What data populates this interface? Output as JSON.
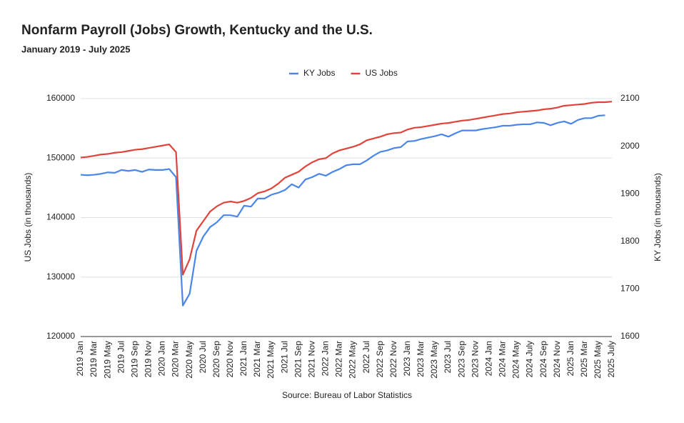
{
  "chart_data": {
    "type": "line",
    "title": "Nonfarm Payroll (Jobs) Growth, Kentucky and the U.S.",
    "subtitle": "January 2019 - July 2025",
    "source": "Source: Bureau of Labor Statistics",
    "ylabel": "US Jobs (in thousands)",
    "y2label": "KY Jobs (in thousands)",
    "categories": [
      "2019 Jan",
      null,
      "2019 Mar",
      null,
      "2019 May",
      null,
      "2019 Jul",
      null,
      "2019 Sep",
      null,
      "2019 Nov",
      null,
      "2020 Jan",
      null,
      "2020 Mar",
      null,
      "2020 May",
      null,
      "2020 Jul",
      null,
      "2020 Sep",
      null,
      "2020 Nov",
      null,
      "2021 Jan",
      null,
      "2021 Mar",
      null,
      "2021 May",
      null,
      "2021 Jul",
      null,
      "2021 Sep",
      null,
      "2021 Nov",
      null,
      "2022 Jan",
      null,
      "2022 Mar",
      null,
      "2022 May",
      null,
      "2022 Jul",
      null,
      "2022 Sep",
      null,
      "2022 Nov",
      null,
      "2023 Jan",
      null,
      "2023 Mar",
      null,
      "2023 May",
      null,
      "2023 Jul",
      null,
      "2023 Sep",
      null,
      "2023 Nov",
      null,
      "2024 Jan",
      null,
      "2024 Mar",
      null,
      "2024 May",
      null,
      "2024 July",
      null,
      "2024 Sep",
      null,
      "2024 Nov",
      null,
      "2025 Jan",
      null,
      "2025 Mar",
      null,
      "2025 May",
      null,
      "2025 July"
    ],
    "series": [
      {
        "name": "KY Jobs",
        "color": "#4a86e8",
        "axis": "y2",
        "values": [
          1940,
          1939,
          1940,
          1942,
          1945,
          1944,
          1950,
          1948,
          1950,
          1946,
          1951,
          1950,
          1950,
          1952,
          1935,
          1665,
          1690,
          1780,
          1810,
          1830,
          1840,
          1855,
          1855,
          1852,
          1875,
          1873,
          1890,
          1890,
          1898,
          1902,
          1908,
          1920,
          1913,
          1930,
          1935,
          1942,
          1938,
          1946,
          1952,
          1960,
          1962,
          1962,
          1970,
          1980,
          1988,
          1991,
          1996,
          1998,
          2010,
          2011,
          2015,
          2018,
          2021,
          2025,
          2020,
          2027,
          2033,
          2033,
          2033,
          2036,
          2038,
          2040,
          2043,
          2043,
          2045,
          2046,
          2046,
          2050,
          2049,
          2044,
          2049,
          2052,
          2047,
          2055,
          2059,
          2059,
          2064,
          2065,
          null
        ]
      },
      {
        "name": "US Jobs",
        "color": "#e0433a",
        "axis": "y",
        "values": [
          150100,
          150200,
          150400,
          150600,
          150700,
          150900,
          151000,
          151200,
          151400,
          151500,
          151700,
          151900,
          152100,
          152300,
          151000,
          130400,
          133000,
          137800,
          139400,
          141000,
          141900,
          142500,
          142700,
          142500,
          142800,
          143300,
          144100,
          144400,
          144900,
          145700,
          146700,
          147200,
          147700,
          148600,
          149300,
          149800,
          150000,
          150800,
          151300,
          151600,
          151900,
          152300,
          153000,
          153300,
          153600,
          154000,
          154200,
          154300,
          154800,
          155100,
          155200,
          155400,
          155600,
          155800,
          155900,
          156100,
          156300,
          156400,
          156600,
          156800,
          157000,
          157200,
          157400,
          157500,
          157700,
          157800,
          157900,
          158000,
          158200,
          158300,
          158500,
          158800,
          158900,
          159000,
          159100,
          159300,
          159400,
          159400,
          159500
        ]
      }
    ],
    "ylim": [
      120000,
      160000
    ],
    "yticks": [
      120000,
      130000,
      140000,
      150000,
      160000
    ],
    "y2lim": [
      1600,
      2100
    ],
    "y2ticks": [
      1600,
      1700,
      1800,
      1900,
      2000,
      2100
    ],
    "grid": true,
    "legend": "top"
  }
}
